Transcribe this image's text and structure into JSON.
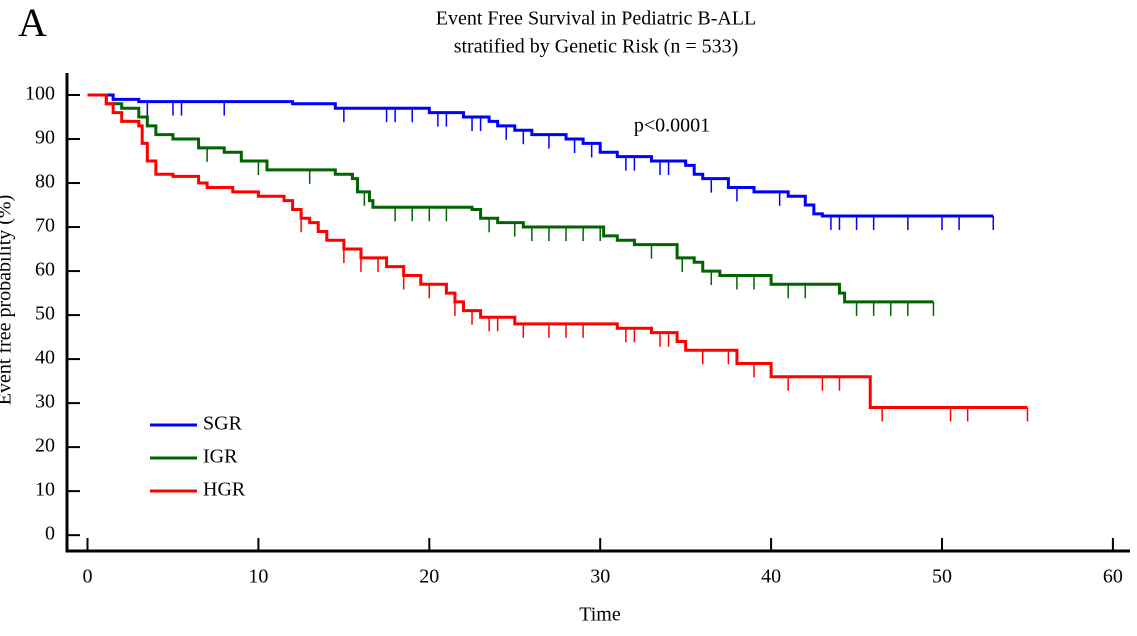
{
  "panel_label": "A",
  "chart_data": {
    "type": "step",
    "title": "Event Free Survival in Pediatric B-ALL",
    "subtitle": "stratified by Genetic Risk (n = 533)",
    "x_label": "Time",
    "y_label": "Event free probability (%)",
    "annotation": "p<0.0001",
    "xlim": [
      -1.2,
      61
    ],
    "ylim": [
      -3.6,
      105
    ],
    "xticks": [
      0,
      10,
      20,
      30,
      40,
      50,
      60
    ],
    "yticks": [
      0,
      10,
      20,
      30,
      40,
      50,
      60,
      70,
      80,
      90,
      100
    ],
    "legend": "lower-left",
    "series": [
      {
        "name": "SGR",
        "color": "#0000ff",
        "x": [
          0,
          1.5,
          3,
          12,
          14.5,
          20,
          22,
          23.5,
          24,
          25,
          26,
          28,
          29,
          30,
          31,
          33,
          35,
          35.5,
          36,
          37.5,
          39,
          41,
          42,
          42.5,
          43,
          53
        ],
        "values": [
          100,
          99,
          98.5,
          98,
          97,
          96,
          95,
          94,
          93,
          92,
          91,
          90,
          89,
          87,
          86,
          85,
          84,
          82,
          81,
          79,
          78,
          77,
          75,
          73,
          72.5,
          72.5
        ],
        "censored": [
          3.5,
          5,
          5.5,
          8,
          15,
          17.5,
          18,
          19,
          20.5,
          21,
          22.5,
          23,
          24.5,
          25.5,
          27,
          28.5,
          29.5,
          31.5,
          32,
          33.5,
          34,
          36.5,
          38,
          40.5,
          43.5,
          44,
          45,
          46,
          48,
          50,
          51,
          53
        ]
      },
      {
        "name": "IGR",
        "color": "#006400",
        "x": [
          0,
          1.1,
          2,
          3,
          3.5,
          4,
          5,
          6.5,
          8,
          9,
          10.5,
          14.5,
          15.5,
          15.8,
          16.5,
          16.7,
          22.5,
          23,
          24,
          25.5,
          30.2,
          31,
          32,
          34.5,
          35.5,
          36,
          37,
          40,
          44,
          44.3,
          49.5
        ],
        "values": [
          100,
          98,
          97,
          95,
          93,
          91,
          90,
          88,
          87,
          85,
          83,
          82,
          81,
          78,
          76,
          74.5,
          74,
          72,
          71,
          70,
          68,
          67,
          66,
          63,
          62,
          60,
          59,
          57,
          55,
          53,
          53
        ],
        "censored": [
          7,
          10,
          13,
          16.2,
          18,
          19,
          20,
          21,
          23.5,
          25,
          26,
          27,
          28,
          29,
          30,
          33,
          34.8,
          36.5,
          38,
          39,
          41,
          42,
          45,
          46,
          47,
          48,
          49.5
        ]
      },
      {
        "name": "HGR",
        "color": "#ff0000",
        "x": [
          0,
          1.1,
          1.5,
          2,
          3,
          3.2,
          3.5,
          4,
          5,
          6.5,
          7,
          8.5,
          10,
          11.5,
          12,
          12.5,
          13,
          13.5,
          14,
          15,
          16,
          17.5,
          18.5,
          19.5,
          21,
          21.5,
          22,
          23,
          25,
          31,
          33,
          34.5,
          35,
          38,
          40,
          45.8,
          55
        ],
        "values": [
          100,
          98,
          96,
          94,
          93,
          89,
          85,
          82,
          81.5,
          80,
          79,
          78,
          77,
          76,
          74,
          72,
          71,
          69,
          67,
          65,
          63,
          61,
          59,
          57,
          55,
          53,
          51,
          49.5,
          48,
          47,
          46,
          44,
          42,
          39,
          36,
          29,
          29
        ],
        "censored": [
          12.5,
          15,
          16,
          17,
          18.5,
          20,
          21.5,
          22.5,
          23.5,
          24,
          25.5,
          27,
          28,
          29,
          31.5,
          32,
          33.5,
          34,
          36,
          37.5,
          39,
          41,
          43,
          44,
          46.5,
          50.5,
          51.5,
          55
        ]
      }
    ]
  }
}
